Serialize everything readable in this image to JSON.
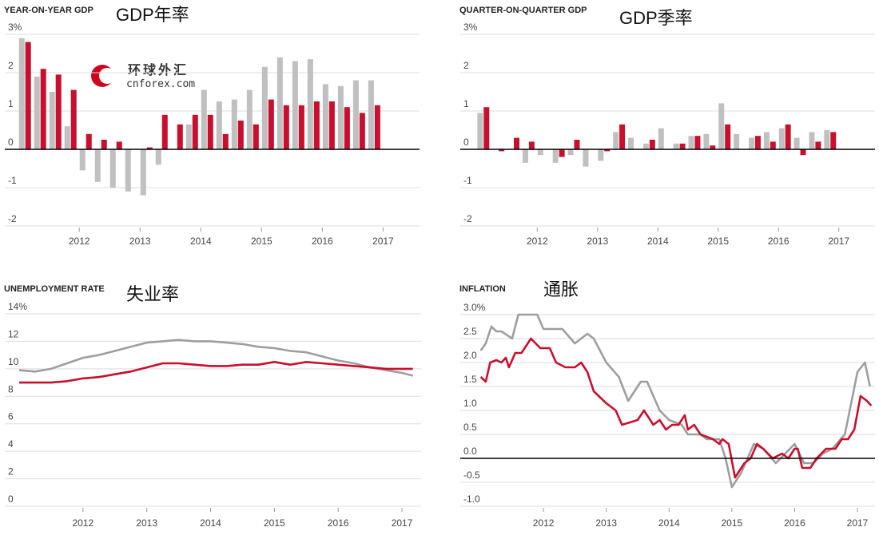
{
  "watermark": {
    "title": "环球外汇",
    "subtitle": "cnforex.com"
  },
  "chart_data": [
    {
      "type": "bar",
      "title": "YEAR-ON-YEAR GDP",
      "annotation": "GDP年率",
      "x": [
        2011,
        2011.25,
        2011.5,
        2011.75,
        2012,
        2012.25,
        2012.5,
        2012.75,
        2013,
        2013.25,
        2013.5,
        2013.75,
        2014,
        2014.25,
        2014.5,
        2014.75,
        2015,
        2015.25,
        2015.5,
        2015.75,
        2016,
        2016.25,
        2016.5,
        2016.75
      ],
      "series": [
        {
          "color": "#c0c0c0",
          "values": [
            2.9,
            1.9,
            1.5,
            0.6,
            -0.55,
            -0.85,
            -1.0,
            -1.1,
            -1.2,
            -0.4,
            0,
            0.65,
            1.55,
            1.25,
            1.3,
            1.55,
            2.15,
            2.4,
            2.3,
            2.35,
            1.7,
            1.65,
            1.8,
            1.8
          ]
        },
        {
          "color": "#c8102e",
          "values": [
            2.8,
            2.1,
            1.95,
            1.55,
            0.4,
            0.25,
            0.2,
            0,
            0.05,
            0.9,
            0.65,
            0.9,
            0.9,
            0.4,
            0.75,
            0.65,
            1.3,
            1.15,
            1.15,
            1.25,
            1.25,
            1.1,
            0.95,
            1.15
          ]
        }
      ],
      "xlim": [
        2010.8,
        2017.6
      ],
      "xticks": [
        2012,
        2013,
        2014,
        2015,
        2016,
        2017
      ],
      "ylim": [
        -2,
        3
      ],
      "yticks": [
        -2,
        -1,
        0,
        1,
        2,
        {
          "value": 3,
          "label": "3%"
        }
      ],
      "grid": true,
      "zero_line": true
    },
    {
      "type": "bar",
      "title": "QUARTER-ON-QUARTER GDP",
      "annotation": "GDP季率",
      "x": [
        2011,
        2011.25,
        2011.5,
        2011.75,
        2012,
        2012.25,
        2012.5,
        2012.75,
        2013,
        2013.25,
        2013.5,
        2013.75,
        2014,
        2014.25,
        2014.5,
        2014.75,
        2015,
        2015.25,
        2015.5,
        2015.75,
        2016,
        2016.25,
        2016.5,
        2016.75
      ],
      "series": [
        {
          "color": "#c0c0c0",
          "values": [
            0.95,
            0,
            0,
            -0.35,
            -0.15,
            -0.35,
            -0.15,
            -0.45,
            -0.3,
            0.45,
            0.3,
            0.15,
            0.55,
            0.15,
            0.35,
            0.4,
            1.2,
            0.4,
            0.3,
            0.45,
            0.55,
            0.3,
            0.45,
            0.5
          ]
        },
        {
          "color": "#c8102e",
          "values": [
            1.1,
            -0.05,
            0.3,
            0.2,
            0,
            -0.2,
            0.25,
            0,
            -0.05,
            0.65,
            0,
            0.25,
            0,
            0.15,
            0.35,
            0.1,
            0.65,
            0,
            0.35,
            0.2,
            0.65,
            -0.15,
            0.2,
            0.45
          ]
        }
      ],
      "xlim": [
        2010.75,
        2017.6
      ],
      "xticks": [
        2012,
        2013,
        2014,
        2015,
        2016,
        2017
      ],
      "ylim": [
        -2,
        3
      ],
      "yticks": [
        -2,
        -1,
        0,
        1,
        2,
        {
          "value": 3,
          "label": "3%"
        }
      ],
      "grid": true,
      "zero_line": true
    },
    {
      "type": "line",
      "title": "UNEMPLOYMENT RATE",
      "annotation": "失业率",
      "series": [
        {
          "color": "#9e9e9e",
          "x": [
            2011,
            2011.25,
            2011.5,
            2011.75,
            2012,
            2012.25,
            2012.5,
            2012.75,
            2013,
            2013.25,
            2013.5,
            2013.75,
            2014,
            2014.25,
            2014.5,
            2014.75,
            2015,
            2015.25,
            2015.5,
            2015.75,
            2016,
            2016.25,
            2016.5,
            2016.75,
            2017,
            2017.17
          ],
          "values": [
            9.9,
            9.8,
            10.0,
            10.4,
            10.8,
            11.0,
            11.3,
            11.6,
            11.9,
            12.0,
            12.1,
            12.0,
            12.0,
            11.9,
            11.8,
            11.6,
            11.5,
            11.3,
            11.2,
            10.9,
            10.6,
            10.4,
            10.1,
            9.9,
            9.7,
            9.5
          ]
        },
        {
          "color": "#c8102e",
          "x": [
            2011,
            2011.25,
            2011.5,
            2011.75,
            2012,
            2012.25,
            2012.5,
            2012.75,
            2013,
            2013.25,
            2013.5,
            2013.75,
            2014,
            2014.25,
            2014.5,
            2014.75,
            2015,
            2015.25,
            2015.5,
            2015.75,
            2016,
            2016.25,
            2016.5,
            2016.75,
            2017,
            2017.17
          ],
          "values": [
            9.0,
            9.0,
            9.0,
            9.1,
            9.3,
            9.4,
            9.6,
            9.8,
            10.1,
            10.4,
            10.4,
            10.3,
            10.2,
            10.2,
            10.3,
            10.3,
            10.5,
            10.3,
            10.5,
            10.4,
            10.3,
            10.2,
            10.1,
            10.0,
            10.0,
            10.0
          ]
        }
      ],
      "xlim": [
        2010.8,
        2017.3
      ],
      "xticks": [
        2012,
        2013,
        2014,
        2015,
        2016,
        2017
      ],
      "ylim": [
        0,
        14
      ],
      "yticks": [
        0,
        2,
        4,
        6,
        8,
        10,
        12,
        {
          "value": 14,
          "label": "14%"
        }
      ],
      "grid": true,
      "zero_line": false
    },
    {
      "type": "line",
      "title": "INFLATION",
      "annotation": "通胀",
      "series": [
        {
          "color": "#9e9e9e",
          "x": [
            2011,
            2011.08,
            2011.17,
            2011.25,
            2011.33,
            2011.5,
            2011.6,
            2011.75,
            2011.9,
            2012,
            2012.3,
            2012.5,
            2012.7,
            2012.8,
            2013,
            2013.2,
            2013.35,
            2013.55,
            2013.65,
            2013.85,
            2014,
            2014.2,
            2014.3,
            2014.5,
            2014.6,
            2014.8,
            2014.9,
            2015,
            2015.15,
            2015.35,
            2015.5,
            2015.7,
            2015.85,
            2016,
            2016.15,
            2016.3,
            2016.45,
            2016.6,
            2016.8,
            2017,
            2017.12,
            2017.2
          ],
          "values": [
            2.25,
            2.4,
            2.75,
            2.65,
            2.65,
            2.5,
            3.0,
            3.0,
            3.0,
            2.7,
            2.7,
            2.4,
            2.6,
            2.5,
            2.0,
            1.7,
            1.2,
            1.6,
            1.6,
            1.0,
            0.8,
            0.7,
            0.5,
            0.5,
            0.4,
            0.4,
            0.0,
            -0.6,
            -0.3,
            0.3,
            0.2,
            -0.1,
            0.1,
            0.3,
            -0.1,
            -0.1,
            0.1,
            0.2,
            0.5,
            1.8,
            2.0,
            1.5
          ]
        },
        {
          "color": "#c8102e",
          "x": [
            2011,
            2011.08,
            2011.15,
            2011.25,
            2011.33,
            2011.4,
            2011.45,
            2011.55,
            2011.65,
            2011.8,
            2011.95,
            2012.1,
            2012.2,
            2012.35,
            2012.5,
            2012.6,
            2012.7,
            2012.8,
            2013,
            2013.15,
            2013.25,
            2013.5,
            2013.6,
            2013.75,
            2013.85,
            2013.95,
            2014.05,
            2014.15,
            2014.25,
            2014.3,
            2014.4,
            2014.5,
            2014.7,
            2014.8,
            2014.85,
            2014.95,
            2015.05,
            2015.1,
            2015.2,
            2015.3,
            2015.4,
            2015.5,
            2015.65,
            2015.8,
            2015.9,
            2016,
            2016.05,
            2016.12,
            2016.25,
            2016.35,
            2016.5,
            2016.65,
            2016.75,
            2016.85,
            2016.95,
            2017.05,
            2017.15,
            2017.22
          ],
          "values": [
            1.7,
            1.6,
            2.0,
            2.05,
            2.0,
            2.1,
            1.9,
            2.2,
            2.2,
            2.5,
            2.3,
            2.3,
            2.0,
            1.9,
            1.9,
            2.0,
            1.8,
            1.4,
            1.15,
            1.0,
            0.7,
            0.8,
            1.0,
            0.7,
            0.8,
            0.6,
            0.7,
            0.7,
            0.9,
            0.6,
            0.7,
            0.5,
            0.4,
            0.3,
            0.4,
            0.3,
            -0.4,
            -0.3,
            -0.1,
            0.0,
            0.3,
            0.2,
            0.0,
            0.1,
            0.0,
            0.2,
            0.2,
            -0.2,
            -0.2,
            0.0,
            0.2,
            0.2,
            0.4,
            0.4,
            0.6,
            1.3,
            1.2,
            1.1
          ]
        }
      ],
      "xlim": [
        2010.7,
        2017.28
      ],
      "xticks": [
        2012,
        2013,
        2014,
        2015,
        2016,
        2017
      ],
      "ylim": [
        -1,
        3
      ],
      "yticks": [
        {
          "value": -1,
          "label": "-1.0"
        },
        -0.5,
        {
          "value": 0,
          "label": "0.0"
        },
        0.5,
        {
          "value": 1,
          "label": "1.0"
        },
        1.5,
        {
          "value": 2,
          "label": "2.0"
        },
        2.5,
        {
          "value": 3,
          "label": "3.0%"
        }
      ],
      "grid": true,
      "zero_line": true
    }
  ]
}
